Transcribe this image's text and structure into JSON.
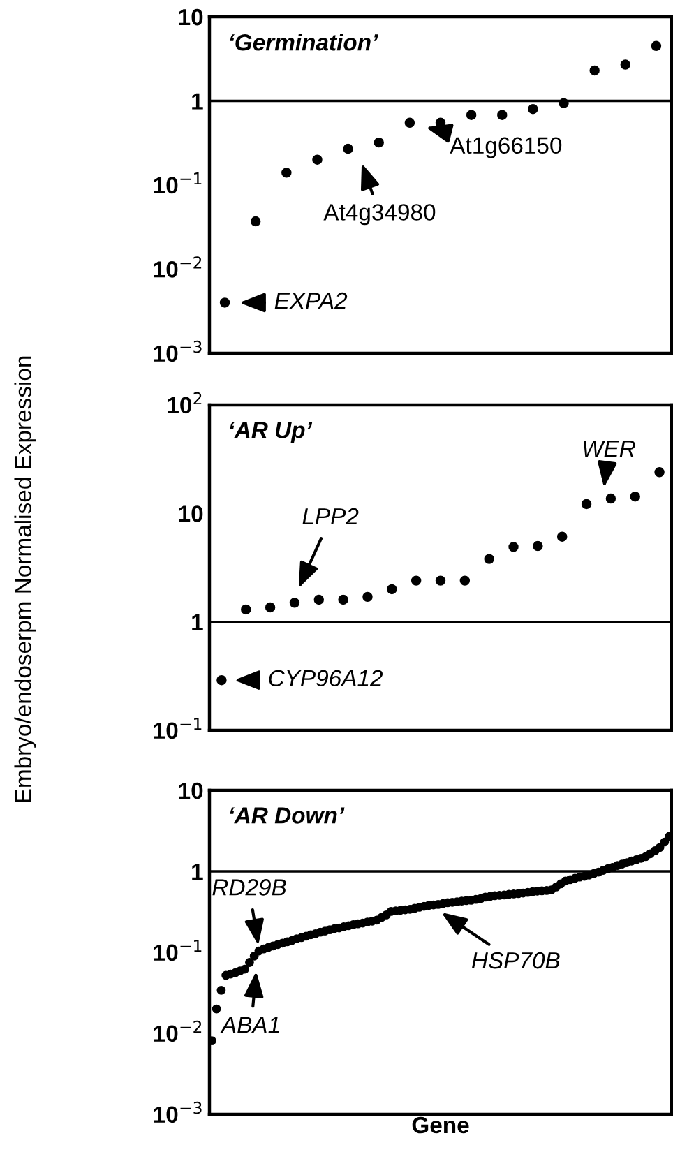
{
  "chart_data": [
    {
      "type": "scatter",
      "title": "‘Germination’",
      "categories": [
        null,
        null,
        null,
        null,
        null,
        null,
        null,
        null,
        null,
        null,
        null,
        null,
        null,
        null,
        null
      ],
      "series": [
        {
          "color": "#000000",
          "values": [
            0.004,
            0.037,
            0.14,
            0.2,
            0.27,
            0.32,
            0.55,
            0.55,
            0.68,
            0.68,
            0.8,
            0.94,
            2.3,
            2.7,
            4.5
          ]
        }
      ],
      "log": "y",
      "ylim": [
        0.001,
        10
      ],
      "yticks": [
        {
          "value": 0.001,
          "label": "10$^{−3}$"
        },
        {
          "value": 0.01,
          "label": "10$^{−2}$"
        },
        {
          "value": 0.1,
          "label": "10$^{−1}$"
        },
        1,
        10
      ],
      "ref_lines": [
        {
          "axis": "y",
          "value": 1,
          "color": "#000000"
        }
      ],
      "marker": "circle",
      "grid": false,
      "legend": false,
      "tick_labels": "y",
      "annotations": [
        "EXPA2",
        "At4g34980",
        "At1g66150"
      ]
    },
    {
      "type": "scatter",
      "title": "‘AR Up’",
      "ylabel": "Embryo/endoserpm Normalised Expression",
      "categories": [
        null,
        null,
        null,
        null,
        null,
        null,
        null,
        null,
        null,
        null,
        null,
        null,
        null,
        null,
        null,
        null,
        null,
        null,
        null
      ],
      "series": [
        {
          "color": "#000000",
          "values": [
            0.29,
            1.3,
            1.36,
            1.5,
            1.6,
            1.6,
            1.7,
            2.0,
            2.4,
            2.4,
            2.4,
            3.8,
            4.9,
            5.0,
            6.1,
            12.2,
            13.7,
            14.3,
            24
          ]
        }
      ],
      "log": "y",
      "ylim": [
        0.1,
        100
      ],
      "yticks": [
        {
          "value": 0.1,
          "label": "10$^{−1}$"
        },
        1,
        10,
        {
          "value": 100,
          "label": "10$^{2}$"
        }
      ],
      "ref_lines": [
        {
          "axis": "y",
          "value": 1,
          "color": "#000000"
        }
      ],
      "marker": "circle",
      "grid": false,
      "legend": false,
      "tick_labels": "y",
      "annotations": [
        "CYP96A12",
        "LPP2",
        "WER"
      ]
    },
    {
      "type": "scatter",
      "title": "‘AR Down’",
      "xlabel": "Gene",
      "categories": [
        null,
        null,
        null,
        null,
        null,
        null,
        null,
        null,
        null,
        null,
        null,
        null,
        null,
        null,
        null,
        null,
        null,
        null,
        null,
        null,
        null,
        null,
        null,
        null,
        null,
        null,
        null,
        null,
        null,
        null,
        null,
        null,
        null,
        null,
        null,
        null,
        null,
        null,
        null,
        null,
        null,
        null,
        null,
        null,
        null,
        null,
        null,
        null,
        null,
        null,
        null,
        null,
        null,
        null,
        null,
        null,
        null,
        null,
        null,
        null,
        null,
        null,
        null,
        null,
        null,
        null,
        null,
        null,
        null,
        null,
        null,
        null,
        null,
        null,
        null,
        null,
        null,
        null,
        null,
        null,
        null,
        null,
        null,
        null,
        null,
        null,
        null,
        null,
        null,
        null,
        null,
        null,
        null,
        null,
        null,
        null,
        null,
        null
      ],
      "series": [
        {
          "color": "#000000",
          "values": [
            0.0081,
            0.02,
            0.034,
            0.052,
            0.054,
            0.056,
            0.059,
            0.062,
            0.075,
            0.09,
            0.104,
            0.11,
            0.115,
            0.12,
            0.125,
            0.13,
            0.135,
            0.14,
            0.147,
            0.152,
            0.158,
            0.165,
            0.17,
            0.177,
            0.183,
            0.19,
            0.196,
            0.2,
            0.207,
            0.213,
            0.22,
            0.225,
            0.23,
            0.237,
            0.243,
            0.25,
            0.27,
            0.29,
            0.32,
            0.325,
            0.33,
            0.335,
            0.34,
            0.35,
            0.36,
            0.37,
            0.38,
            0.385,
            0.39,
            0.4,
            0.41,
            0.415,
            0.42,
            0.43,
            0.435,
            0.44,
            0.45,
            0.46,
            0.48,
            0.49,
            0.5,
            0.505,
            0.51,
            0.52,
            0.525,
            0.53,
            0.54,
            0.55,
            0.56,
            0.57,
            0.575,
            0.58,
            0.59,
            0.64,
            0.7,
            0.76,
            0.79,
            0.82,
            0.85,
            0.87,
            0.9,
            0.94,
            0.98,
            1.03,
            1.08,
            1.12,
            1.18,
            1.23,
            1.28,
            1.34,
            1.39,
            1.45,
            1.52,
            1.65,
            1.8,
            1.97,
            2.3,
            2.7
          ]
        }
      ],
      "log": "y",
      "ylim": [
        0.001,
        10
      ],
      "yticks": [
        {
          "value": 0.001,
          "label": "10$^{−3}$"
        },
        {
          "value": 0.01,
          "label": "10$^{−2}$"
        },
        {
          "value": 0.1,
          "label": "10$^{−1}$"
        },
        1,
        10
      ],
      "ref_lines": [
        {
          "axis": "y",
          "value": 1,
          "color": "#000000"
        }
      ],
      "marker": "circle",
      "grid": false,
      "legend": false,
      "tick_labels": "y",
      "annotations": [
        "RD29B",
        "ABA1",
        "HSP70B"
      ]
    }
  ]
}
